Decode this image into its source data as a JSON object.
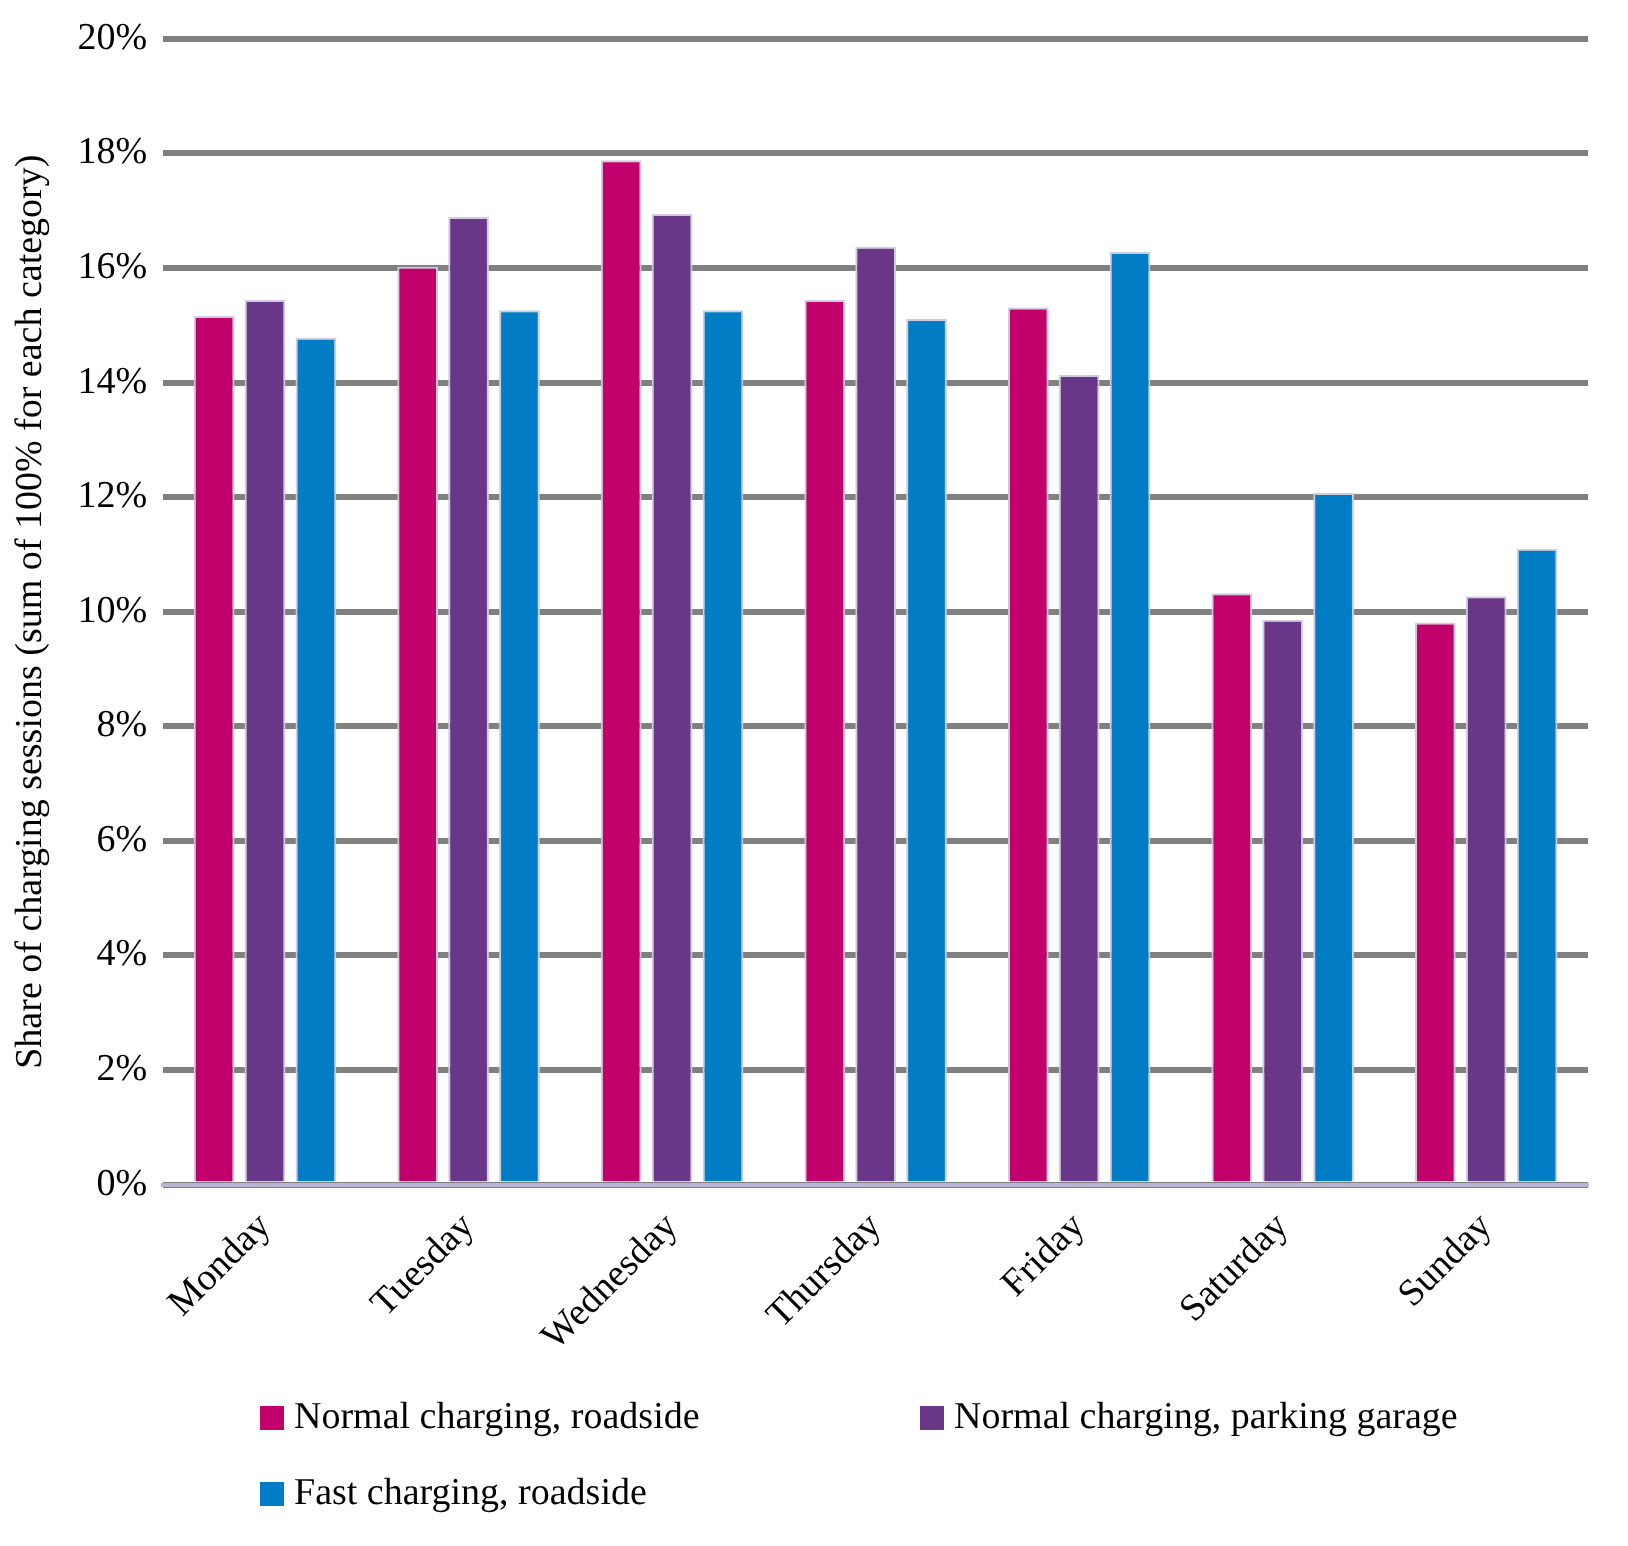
{
  "chart_data": {
    "type": "bar",
    "ylabel": "Share of charging sessions (sum of 100% for each category)",
    "categories": [
      "Monday",
      "Tuesday",
      "Wednesday",
      "Thursday",
      "Friday",
      "Saturday",
      "Sunday"
    ],
    "series": [
      {
        "name": "Normal charging, roadside",
        "color": "#c2006b",
        "values": [
          15.16,
          16.02,
          17.88,
          15.44,
          15.31,
          10.32,
          9.81
        ]
      },
      {
        "name": "Normal charging, parking garage",
        "color": "#693688",
        "values": [
          15.44,
          16.89,
          16.94,
          16.37,
          14.13,
          9.86,
          10.27
        ]
      },
      {
        "name": "Fast charging, roadside",
        "color": "#007dc4",
        "values": [
          14.78,
          15.26,
          15.26,
          15.11,
          16.28,
          12.07,
          11.1
        ]
      }
    ],
    "ylim": [
      0,
      20
    ],
    "yticks": [
      {
        "value": 0,
        "label": "0%"
      },
      {
        "value": 2,
        "label": "2%"
      },
      {
        "value": 4,
        "label": "4%"
      },
      {
        "value": 6,
        "label": "6%"
      },
      {
        "value": 8,
        "label": "8%"
      },
      {
        "value": 10,
        "label": "10%"
      },
      {
        "value": 12,
        "label": "12%"
      },
      {
        "value": 14,
        "label": "14%"
      },
      {
        "value": 16,
        "label": "16%"
      },
      {
        "value": 18,
        "label": "18%"
      },
      {
        "value": 20,
        "label": "20%"
      }
    ],
    "grid": "y",
    "legend": "bottom"
  }
}
